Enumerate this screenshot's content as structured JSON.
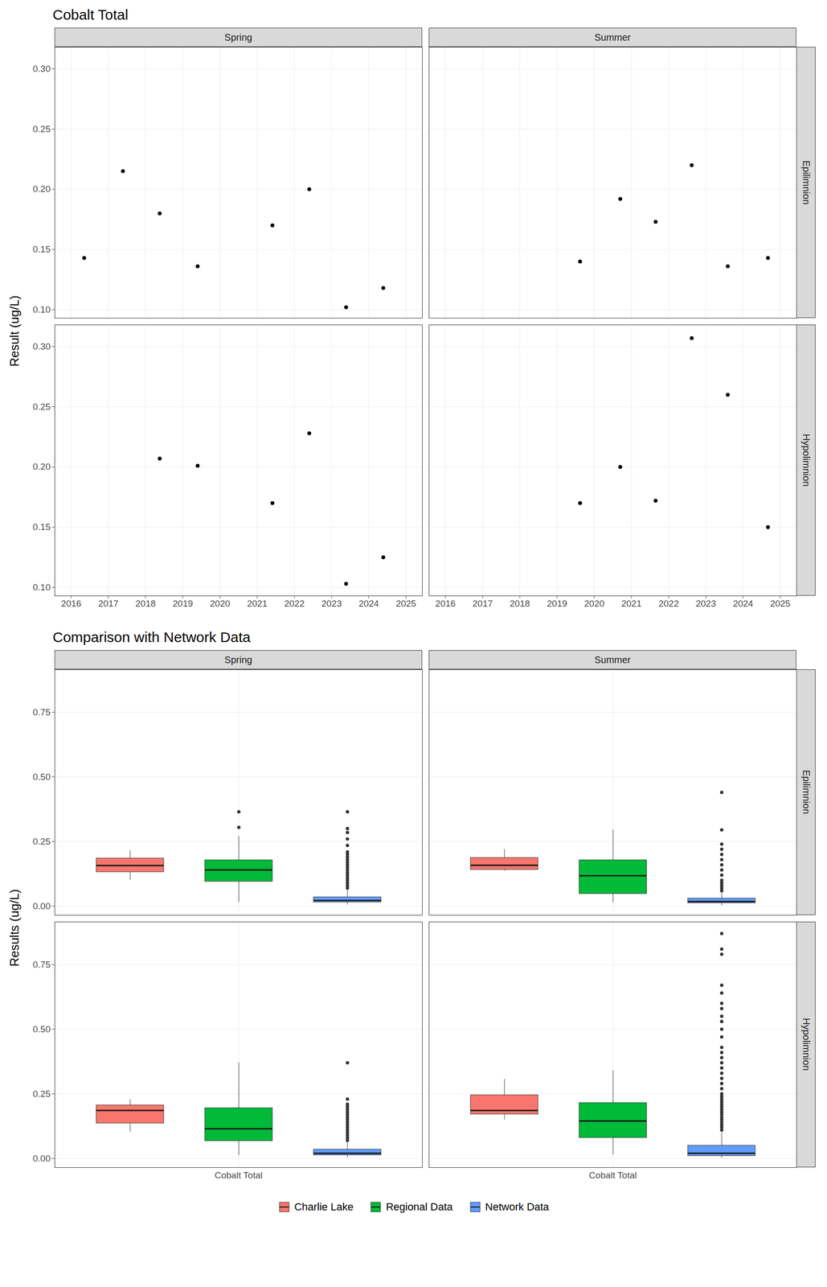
{
  "chart_data": [
    {
      "type": "scatter",
      "title": "Cobalt Total",
      "y_label": "Result (ug/L)",
      "columns": [
        "Spring",
        "Summer"
      ],
      "rows": [
        "Epilimnion",
        "Hypolimnion"
      ],
      "color": "#000000",
      "grid": true,
      "xlim": [
        2015.56,
        2025.44
      ],
      "xticks": [
        2016,
        2017,
        2018,
        2019,
        2020,
        2021,
        2022,
        2023,
        2024,
        2025
      ],
      "ylim": [
        0.093,
        0.318
      ],
      "yticks": [
        {
          "value": 0.1,
          "label": "0.10"
        },
        {
          "value": 0.15,
          "label": "0.15"
        },
        {
          "value": 0.2,
          "label": "0.20"
        },
        {
          "value": 0.25,
          "label": "0.25"
        },
        {
          "value": 0.3,
          "label": "0.30"
        }
      ],
      "panels": [
        {
          "column": "Spring",
          "row": "Epilimnion",
          "x": [
            2016.35,
            2017.39,
            2018.38,
            2019.4,
            2021.41,
            2022.4,
            2023.39,
            2024.39
          ],
          "values": [
            0.143,
            0.215,
            0.18,
            0.136,
            0.17,
            0.2,
            0.102,
            0.118
          ]
        },
        {
          "column": "Summer",
          "row": "Epilimnion",
          "x": [
            2019.62,
            2020.7,
            2021.65,
            2022.62,
            2023.59,
            2024.67
          ],
          "values": [
            0.14,
            0.192,
            0.173,
            0.22,
            0.136,
            0.143
          ]
        },
        {
          "column": "Spring",
          "row": "Hypolimnion",
          "x": [
            2018.38,
            2019.4,
            2021.41,
            2022.4,
            2023.39,
            2024.39
          ],
          "values": [
            0.207,
            0.201,
            0.17,
            0.228,
            0.103,
            0.125
          ]
        },
        {
          "column": "Summer",
          "row": "Hypolimnion",
          "x": [
            2019.62,
            2020.7,
            2021.65,
            2022.62,
            2023.59,
            2024.67
          ],
          "values": [
            0.17,
            0.2,
            0.172,
            0.307,
            0.26,
            0.15
          ]
        }
      ]
    },
    {
      "type": "box",
      "title": "Comparison with Network Data",
      "y_label": "Results (ug/L)",
      "columns": [
        "Spring",
        "Summer"
      ],
      "rows": [
        "Epilimnion",
        "Hypolimnion"
      ],
      "categories": [
        "Cobalt Total"
      ],
      "series": [
        {
          "name": "Charlie Lake",
          "color": "#F8766D"
        },
        {
          "name": "Regional Data",
          "color": "#00BA38"
        },
        {
          "name": "Network Data",
          "color": "#619CFF"
        }
      ],
      "legend": "bottom",
      "grid": true,
      "ylim": [
        -0.035,
        0.915
      ],
      "yticks": [
        {
          "value": 0,
          "label": "0.00"
        },
        {
          "value": 0.25,
          "label": "0.25"
        },
        {
          "value": 0.5,
          "label": "0.50"
        },
        {
          "value": 0.75,
          "label": "0.75"
        }
      ],
      "panels": [
        {
          "column": "Spring",
          "row": "Epilimnion",
          "boxes": [
            {
              "name": "Charlie Lake",
              "whisker_low": 0.102,
              "q1": 0.132,
              "median": 0.157,
              "q3": 0.185,
              "whisker_high": 0.215,
              "outliers": []
            },
            {
              "name": "Regional Data",
              "whisker_low": 0.015,
              "q1": 0.095,
              "median": 0.14,
              "q3": 0.178,
              "whisker_high": 0.27,
              "outliers": [
                0.305,
                0.365
              ]
            },
            {
              "name": "Network Data",
              "whisker_low": 0.005,
              "q1": 0.015,
              "median": 0.022,
              "q3": 0.035,
              "whisker_high": 0.065,
              "outliers": [
                0.07,
                0.08,
                0.09,
                0.1,
                0.11,
                0.12,
                0.13,
                0.14,
                0.15,
                0.16,
                0.17,
                0.18,
                0.19,
                0.2,
                0.21,
                0.235,
                0.26,
                0.285,
                0.3,
                0.365
              ]
            }
          ]
        },
        {
          "column": "Summer",
          "row": "Epilimnion",
          "boxes": [
            {
              "name": "Charlie Lake",
              "whisker_low": 0.136,
              "q1": 0.141,
              "median": 0.158,
              "q3": 0.187,
              "whisker_high": 0.22,
              "outliers": []
            },
            {
              "name": "Regional Data",
              "whisker_low": 0.015,
              "q1": 0.048,
              "median": 0.118,
              "q3": 0.178,
              "whisker_high": 0.295,
              "outliers": []
            },
            {
              "name": "Network Data",
              "whisker_low": 0.003,
              "q1": 0.012,
              "median": 0.018,
              "q3": 0.03,
              "whisker_high": 0.055,
              "outliers": [
                0.06,
                0.07,
                0.08,
                0.09,
                0.1,
                0.12,
                0.14,
                0.16,
                0.18,
                0.2,
                0.22,
                0.24,
                0.295,
                0.44
              ]
            }
          ]
        },
        {
          "column": "Spring",
          "row": "Hypolimnion",
          "boxes": [
            {
              "name": "Charlie Lake",
              "whisker_low": 0.103,
              "q1": 0.136,
              "median": 0.186,
              "q3": 0.206,
              "whisker_high": 0.228,
              "outliers": []
            },
            {
              "name": "Regional Data",
              "whisker_low": 0.012,
              "q1": 0.068,
              "median": 0.115,
              "q3": 0.195,
              "whisker_high": 0.37,
              "outliers": []
            },
            {
              "name": "Network Data",
              "whisker_low": 0.003,
              "q1": 0.013,
              "median": 0.02,
              "q3": 0.035,
              "whisker_high": 0.065,
              "outliers": [
                0.07,
                0.08,
                0.09,
                0.1,
                0.11,
                0.12,
                0.13,
                0.14,
                0.15,
                0.16,
                0.17,
                0.18,
                0.19,
                0.2,
                0.21,
                0.23,
                0.37
              ]
            }
          ]
        },
        {
          "column": "Summer",
          "row": "Hypolimnion",
          "boxes": [
            {
              "name": "Charlie Lake",
              "whisker_low": 0.15,
              "q1": 0.171,
              "median": 0.186,
              "q3": 0.245,
              "whisker_high": 0.307,
              "outliers": []
            },
            {
              "name": "Regional Data",
              "whisker_low": 0.015,
              "q1": 0.08,
              "median": 0.145,
              "q3": 0.215,
              "whisker_high": 0.34,
              "outliers": []
            },
            {
              "name": "Network Data",
              "whisker_low": 0.002,
              "q1": 0.01,
              "median": 0.02,
              "q3": 0.05,
              "whisker_high": 0.1,
              "outliers": [
                0.11,
                0.12,
                0.13,
                0.14,
                0.15,
                0.16,
                0.17,
                0.18,
                0.19,
                0.2,
                0.21,
                0.22,
                0.23,
                0.24,
                0.25,
                0.27,
                0.29,
                0.31,
                0.33,
                0.35,
                0.37,
                0.39,
                0.41,
                0.43,
                0.47,
                0.5,
                0.53,
                0.55,
                0.58,
                0.6,
                0.64,
                0.67,
                0.79,
                0.81,
                0.87
              ]
            }
          ]
        }
      ]
    }
  ]
}
